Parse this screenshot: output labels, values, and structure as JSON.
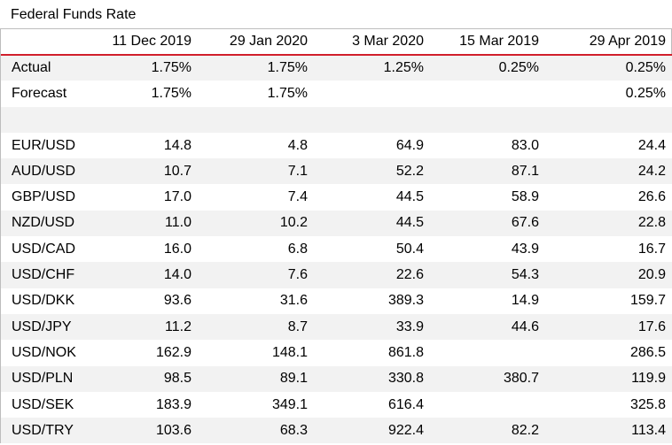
{
  "title": "Federal Funds Rate",
  "columns": [
    "",
    "11 Dec 2019",
    "29 Jan 2020",
    "3 Mar 2020",
    "15 Mar 2019",
    "29 Apr 2019"
  ],
  "rows": [
    {
      "label": "Actual",
      "values": [
        "1.75%",
        "1.75%",
        "1.25%",
        "0.25%",
        "0.25%"
      ]
    },
    {
      "label": "Forecast",
      "values": [
        "1.75%",
        "1.75%",
        "",
        "",
        "0.25%"
      ]
    },
    {
      "label": "",
      "values": [
        "",
        "",
        "",
        "",
        ""
      ]
    },
    {
      "label": "EUR/USD",
      "values": [
        "14.8",
        "4.8",
        "64.9",
        "83.0",
        "24.4"
      ]
    },
    {
      "label": "AUD/USD",
      "values": [
        "10.7",
        "7.1",
        "52.2",
        "87.1",
        "24.2"
      ]
    },
    {
      "label": "GBP/USD",
      "values": [
        "17.0",
        "7.4",
        "44.5",
        "58.9",
        "26.6"
      ]
    },
    {
      "label": "NZD/USD",
      "values": [
        "11.0",
        "10.2",
        "44.5",
        "67.6",
        "22.8"
      ]
    },
    {
      "label": "USD/CAD",
      "values": [
        "16.0",
        "6.8",
        "50.4",
        "43.9",
        "16.7"
      ]
    },
    {
      "label": "USD/CHF",
      "values": [
        "14.0",
        "7.6",
        "22.6",
        "54.3",
        "20.9"
      ]
    },
    {
      "label": "USD/DKK",
      "values": [
        "93.6",
        "31.6",
        "389.3",
        "14.9",
        "159.7"
      ]
    },
    {
      "label": "USD/JPY",
      "values": [
        "11.2",
        "8.7",
        "33.9",
        "44.6",
        "17.6"
      ]
    },
    {
      "label": "USD/NOK",
      "values": [
        "162.9",
        "148.1",
        "861.8",
        "",
        "286.5"
      ]
    },
    {
      "label": "USD/PLN",
      "values": [
        "98.5",
        "89.1",
        "330.8",
        "380.7",
        "119.9"
      ]
    },
    {
      "label": "USD/SEK",
      "values": [
        "183.9",
        "349.1",
        "616.4",
        "",
        "325.8"
      ]
    },
    {
      "label": "USD/TRY",
      "values": [
        "103.6",
        "68.3",
        "922.4",
        "82.2",
        "113.4"
      ]
    }
  ],
  "colors": {
    "header_rule": "#d11f2b",
    "band": "#f2f2f2",
    "border": "#bdbdbd"
  }
}
